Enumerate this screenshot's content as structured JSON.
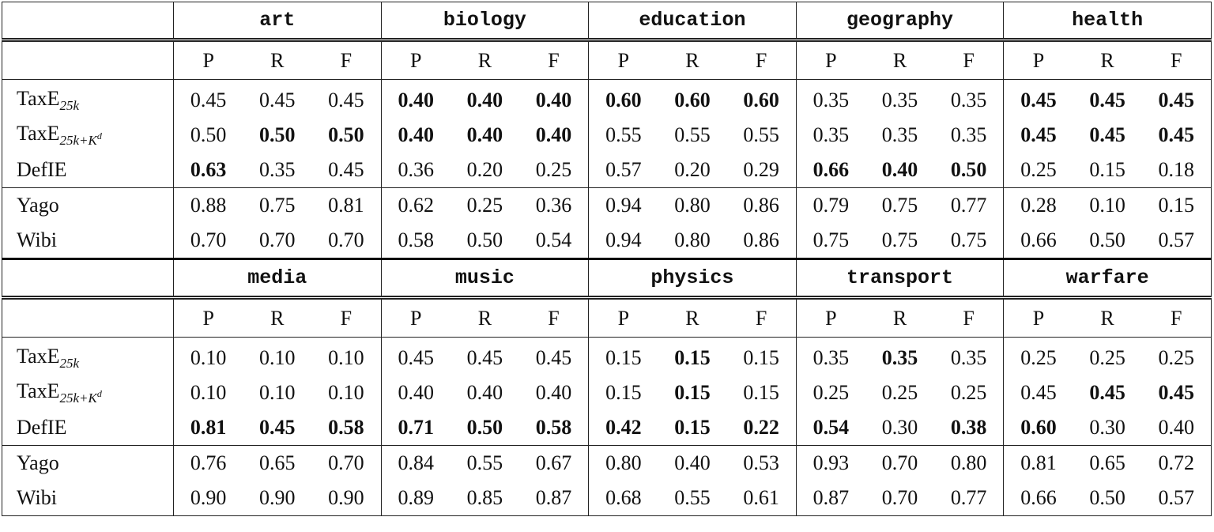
{
  "metrics": [
    "P",
    "R",
    "F"
  ],
  "blocks": [
    {
      "domains": [
        "art",
        "biology",
        "education",
        "geography",
        "health"
      ],
      "rows": [
        {
          "name": "TaxE",
          "sub": "25k",
          "sup": "",
          "values": [
            "0.45",
            "0.45",
            "0.45",
            "0.40",
            "0.40",
            "0.40",
            "0.60",
            "0.60",
            "0.60",
            "0.35",
            "0.35",
            "0.35",
            "0.45",
            "0.45",
            "0.45"
          ],
          "bold": [
            3,
            4,
            5,
            6,
            7,
            8,
            12,
            13,
            14
          ]
        },
        {
          "name": "TaxE",
          "sub": "25k+K",
          "sup": "d",
          "values": [
            "0.50",
            "0.50",
            "0.50",
            "0.40",
            "0.40",
            "0.40",
            "0.55",
            "0.55",
            "0.55",
            "0.35",
            "0.35",
            "0.35",
            "0.45",
            "0.45",
            "0.45"
          ],
          "bold": [
            1,
            2,
            3,
            4,
            5,
            12,
            13,
            14
          ]
        },
        {
          "name": "DefIE",
          "sub": "",
          "sup": "",
          "values": [
            "0.63",
            "0.35",
            "0.45",
            "0.36",
            "0.20",
            "0.25",
            "0.57",
            "0.20",
            "0.29",
            "0.66",
            "0.40",
            "0.50",
            "0.25",
            "0.15",
            "0.18"
          ],
          "bold": [
            0,
            9,
            10,
            11
          ]
        },
        {
          "name": "Yago",
          "sub": "",
          "sup": "",
          "values": [
            "0.88",
            "0.75",
            "0.81",
            "0.62",
            "0.25",
            "0.36",
            "0.94",
            "0.80",
            "0.86",
            "0.79",
            "0.75",
            "0.77",
            "0.28",
            "0.10",
            "0.15"
          ],
          "bold": []
        },
        {
          "name": "Wibi",
          "sub": "",
          "sup": "",
          "values": [
            "0.70",
            "0.70",
            "0.70",
            "0.58",
            "0.50",
            "0.54",
            "0.94",
            "0.80",
            "0.86",
            "0.75",
            "0.75",
            "0.75",
            "0.66",
            "0.50",
            "0.57"
          ],
          "bold": []
        }
      ]
    },
    {
      "domains": [
        "media",
        "music",
        "physics",
        "transport",
        "warfare"
      ],
      "rows": [
        {
          "name": "TaxE",
          "sub": "25k",
          "sup": "",
          "values": [
            "0.10",
            "0.10",
            "0.10",
            "0.45",
            "0.45",
            "0.45",
            "0.15",
            "0.15",
            "0.15",
            "0.35",
            "0.35",
            "0.35",
            "0.25",
            "0.25",
            "0.25"
          ],
          "bold": [
            7,
            10
          ]
        },
        {
          "name": "TaxE",
          "sub": "25k+K",
          "sup": "d",
          "values": [
            "0.10",
            "0.10",
            "0.10",
            "0.40",
            "0.40",
            "0.40",
            "0.15",
            "0.15",
            "0.15",
            "0.25",
            "0.25",
            "0.25",
            "0.45",
            "0.45",
            "0.45"
          ],
          "bold": [
            7,
            13,
            14
          ]
        },
        {
          "name": "DefIE",
          "sub": "",
          "sup": "",
          "values": [
            "0.81",
            "0.45",
            "0.58",
            "0.71",
            "0.50",
            "0.58",
            "0.42",
            "0.15",
            "0.22",
            "0.54",
            "0.30",
            "0.38",
            "0.60",
            "0.30",
            "0.40"
          ],
          "bold": [
            0,
            1,
            2,
            3,
            4,
            5,
            6,
            7,
            8,
            9,
            11,
            12
          ]
        },
        {
          "name": "Yago",
          "sub": "",
          "sup": "",
          "values": [
            "0.76",
            "0.65",
            "0.70",
            "0.84",
            "0.55",
            "0.67",
            "0.80",
            "0.40",
            "0.53",
            "0.93",
            "0.70",
            "0.80",
            "0.81",
            "0.65",
            "0.72"
          ],
          "bold": []
        },
        {
          "name": "Wibi",
          "sub": "",
          "sup": "",
          "values": [
            "0.90",
            "0.90",
            "0.90",
            "0.89",
            "0.85",
            "0.87",
            "0.68",
            "0.55",
            "0.61",
            "0.87",
            "0.70",
            "0.77",
            "0.66",
            "0.50",
            "0.57"
          ],
          "bold": []
        }
      ]
    }
  ]
}
